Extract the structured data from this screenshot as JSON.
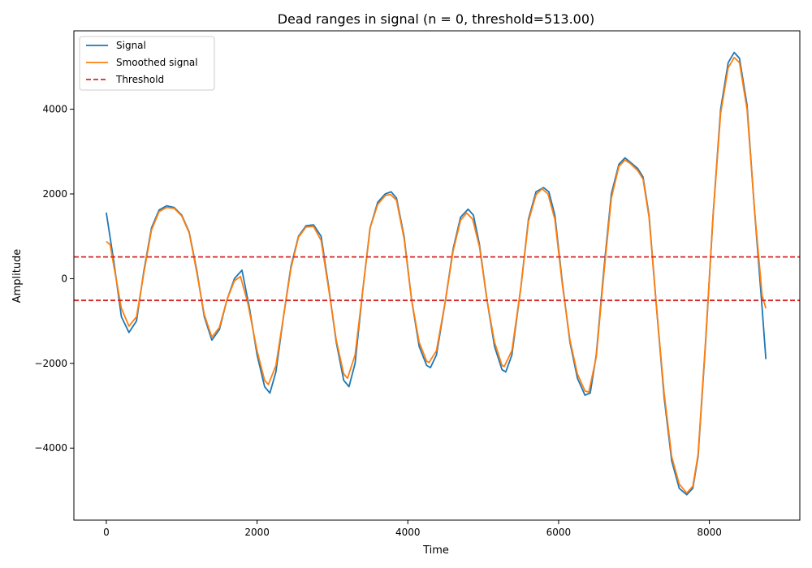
{
  "chart_data": {
    "type": "line",
    "title": "Dead ranges in signal (n = 0, threshold=513.00)",
    "xlabel": "Time",
    "ylabel": "Amplitude",
    "xlim": [
      -430,
      9200
    ],
    "ylim": [
      -5700,
      5850
    ],
    "xticks": [
      0,
      2000,
      4000,
      6000,
      8000
    ],
    "xtick_labels": [
      "0",
      "2000",
      "4000",
      "6000",
      "8000"
    ],
    "yticks": [
      -4000,
      -2000,
      0,
      2000,
      4000
    ],
    "ytick_labels": [
      "−4000",
      "−2000",
      "0",
      "2000",
      "4000"
    ],
    "grid": false,
    "legend_position": "top-left",
    "series": [
      {
        "name": "Signal",
        "color": "#1f77b4",
        "style": "solid",
        "points": [
          [
            0,
            1560
          ],
          [
            100,
            400
          ],
          [
            200,
            -900
          ],
          [
            300,
            -1270
          ],
          [
            400,
            -1000
          ],
          [
            500,
            200
          ],
          [
            600,
            1200
          ],
          [
            700,
            1620
          ],
          [
            800,
            1720
          ],
          [
            900,
            1680
          ],
          [
            1000,
            1500
          ],
          [
            1100,
            1100
          ],
          [
            1200,
            200
          ],
          [
            1300,
            -900
          ],
          [
            1400,
            -1450
          ],
          [
            1500,
            -1200
          ],
          [
            1600,
            -500
          ],
          [
            1700,
            0
          ],
          [
            1800,
            200
          ],
          [
            1900,
            -700
          ],
          [
            2000,
            -1800
          ],
          [
            2100,
            -2550
          ],
          [
            2170,
            -2700
          ],
          [
            2250,
            -2200
          ],
          [
            2350,
            -900
          ],
          [
            2450,
            300
          ],
          [
            2550,
            1000
          ],
          [
            2650,
            1250
          ],
          [
            2750,
            1270
          ],
          [
            2850,
            1000
          ],
          [
            2950,
            -200
          ],
          [
            3050,
            -1500
          ],
          [
            3150,
            -2400
          ],
          [
            3220,
            -2550
          ],
          [
            3300,
            -2000
          ],
          [
            3400,
            -300
          ],
          [
            3500,
            1200
          ],
          [
            3600,
            1800
          ],
          [
            3700,
            2000
          ],
          [
            3780,
            2050
          ],
          [
            3850,
            1900
          ],
          [
            3950,
            1000
          ],
          [
            4050,
            -500
          ],
          [
            4150,
            -1600
          ],
          [
            4250,
            -2050
          ],
          [
            4300,
            -2100
          ],
          [
            4380,
            -1800
          ],
          [
            4500,
            -500
          ],
          [
            4600,
            700
          ],
          [
            4700,
            1450
          ],
          [
            4800,
            1640
          ],
          [
            4870,
            1500
          ],
          [
            4950,
            800
          ],
          [
            5050,
            -500
          ],
          [
            5150,
            -1600
          ],
          [
            5250,
            -2150
          ],
          [
            5300,
            -2200
          ],
          [
            5380,
            -1800
          ],
          [
            5500,
            -200
          ],
          [
            5600,
            1400
          ],
          [
            5700,
            2050
          ],
          [
            5800,
            2150
          ],
          [
            5870,
            2050
          ],
          [
            5950,
            1500
          ],
          [
            6050,
            -100
          ],
          [
            6150,
            -1500
          ],
          [
            6250,
            -2350
          ],
          [
            6350,
            -2750
          ],
          [
            6420,
            -2700
          ],
          [
            6500,
            -1800
          ],
          [
            6600,
            200
          ],
          [
            6700,
            2000
          ],
          [
            6800,
            2700
          ],
          [
            6880,
            2850
          ],
          [
            6950,
            2750
          ],
          [
            7050,
            2600
          ],
          [
            7120,
            2400
          ],
          [
            7200,
            1500
          ],
          [
            7300,
            -700
          ],
          [
            7400,
            -2800
          ],
          [
            7500,
            -4300
          ],
          [
            7600,
            -4950
          ],
          [
            7700,
            -5100
          ],
          [
            7780,
            -4950
          ],
          [
            7850,
            -4200
          ],
          [
            7950,
            -1500
          ],
          [
            8050,
            1500
          ],
          [
            8150,
            4000
          ],
          [
            8250,
            5100
          ],
          [
            8330,
            5340
          ],
          [
            8400,
            5200
          ],
          [
            8500,
            4100
          ],
          [
            8600,
            1600
          ],
          [
            8700,
            -700
          ],
          [
            8750,
            -1900
          ]
        ]
      },
      {
        "name": "Smoothed signal",
        "color": "#ff7f0e",
        "style": "solid",
        "points": [
          [
            0,
            880
          ],
          [
            50,
            800
          ],
          [
            100,
            300
          ],
          [
            200,
            -700
          ],
          [
            300,
            -1120
          ],
          [
            400,
            -900
          ],
          [
            500,
            150
          ],
          [
            600,
            1150
          ],
          [
            700,
            1580
          ],
          [
            800,
            1680
          ],
          [
            900,
            1660
          ],
          [
            1000,
            1480
          ],
          [
            1100,
            1080
          ],
          [
            1200,
            150
          ],
          [
            1300,
            -850
          ],
          [
            1400,
            -1380
          ],
          [
            1500,
            -1150
          ],
          [
            1600,
            -500
          ],
          [
            1700,
            -50
          ],
          [
            1780,
            50
          ],
          [
            1880,
            -600
          ],
          [
            2000,
            -1700
          ],
          [
            2100,
            -2400
          ],
          [
            2150,
            -2500
          ],
          [
            2250,
            -2050
          ],
          [
            2350,
            -900
          ],
          [
            2450,
            250
          ],
          [
            2550,
            980
          ],
          [
            2650,
            1220
          ],
          [
            2750,
            1230
          ],
          [
            2850,
            900
          ],
          [
            2950,
            -250
          ],
          [
            3050,
            -1450
          ],
          [
            3150,
            -2250
          ],
          [
            3200,
            -2350
          ],
          [
            3300,
            -1800
          ],
          [
            3400,
            -300
          ],
          [
            3500,
            1200
          ],
          [
            3600,
            1750
          ],
          [
            3700,
            1960
          ],
          [
            3770,
            1990
          ],
          [
            3850,
            1850
          ],
          [
            3950,
            950
          ],
          [
            4050,
            -500
          ],
          [
            4150,
            -1500
          ],
          [
            4250,
            -1950
          ],
          [
            4280,
            -1980
          ],
          [
            4380,
            -1700
          ],
          [
            4500,
            -500
          ],
          [
            4600,
            650
          ],
          [
            4700,
            1380
          ],
          [
            4780,
            1550
          ],
          [
            4860,
            1400
          ],
          [
            4950,
            750
          ],
          [
            5050,
            -500
          ],
          [
            5150,
            -1500
          ],
          [
            5250,
            -2050
          ],
          [
            5280,
            -2070
          ],
          [
            5380,
            -1700
          ],
          [
            5500,
            -200
          ],
          [
            5600,
            1350
          ],
          [
            5700,
            1980
          ],
          [
            5780,
            2120
          ],
          [
            5860,
            2000
          ],
          [
            5950,
            1400
          ],
          [
            6050,
            -150
          ],
          [
            6150,
            -1450
          ],
          [
            6250,
            -2250
          ],
          [
            6350,
            -2650
          ],
          [
            6400,
            -2680
          ],
          [
            6500,
            -1850
          ],
          [
            6600,
            100
          ],
          [
            6700,
            1900
          ],
          [
            6800,
            2650
          ],
          [
            6880,
            2800
          ],
          [
            6950,
            2720
          ],
          [
            7050,
            2550
          ],
          [
            7120,
            2350
          ],
          [
            7200,
            1450
          ],
          [
            7300,
            -700
          ],
          [
            7400,
            -2700
          ],
          [
            7500,
            -4200
          ],
          [
            7600,
            -4850
          ],
          [
            7700,
            -5060
          ],
          [
            7780,
            -4900
          ],
          [
            7850,
            -4150
          ],
          [
            7950,
            -1450
          ],
          [
            8050,
            1500
          ],
          [
            8150,
            3900
          ],
          [
            8250,
            4980
          ],
          [
            8330,
            5220
          ],
          [
            8400,
            5100
          ],
          [
            8500,
            4000
          ],
          [
            8600,
            1600
          ],
          [
            8700,
            -400
          ],
          [
            8750,
            -700
          ]
        ]
      },
      {
        "name": "Threshold",
        "color": "#d62728",
        "style": "dashed",
        "hlines": [
          513,
          -513
        ]
      }
    ]
  }
}
